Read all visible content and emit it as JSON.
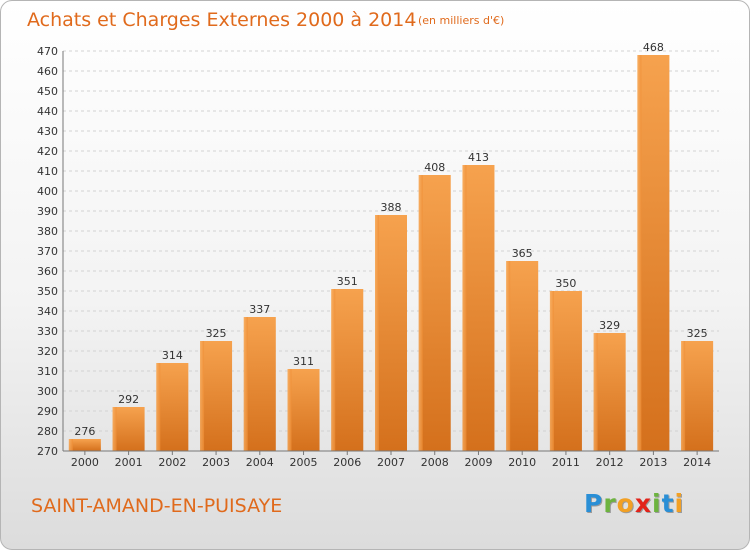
{
  "chart_data": {
    "type": "bar",
    "title": "Achats et Charges Externes 2000 à 2014",
    "subtitle": "(en milliers d'€)",
    "categories": [
      "2000",
      "2001",
      "2002",
      "2003",
      "2004",
      "2005",
      "2006",
      "2007",
      "2008",
      "2009",
      "2010",
      "2011",
      "2012",
      "2013",
      "2014"
    ],
    "values": [
      276,
      292,
      314,
      325,
      337,
      311,
      351,
      388,
      408,
      413,
      365,
      350,
      329,
      468,
      325
    ],
    "ylim": [
      270,
      470
    ],
    "ytick_step": 10,
    "grid": true,
    "bar_color": "#f0953a",
    "xlabel": "",
    "ylabel": ""
  },
  "footer": {
    "commune": "SAINT-AMAND-EN-PUISAYE",
    "logo_letters": [
      {
        "ch": "P",
        "color": "#2a8fd6"
      },
      {
        "ch": "r",
        "color": "#6db33f"
      },
      {
        "ch": "o",
        "color": "#f2a024"
      },
      {
        "ch": "x",
        "color": "#e2231a"
      },
      {
        "ch": "i",
        "color": "#6db33f"
      },
      {
        "ch": "t",
        "color": "#2a8fd6"
      },
      {
        "ch": "i",
        "color": "#f2a024"
      }
    ]
  }
}
